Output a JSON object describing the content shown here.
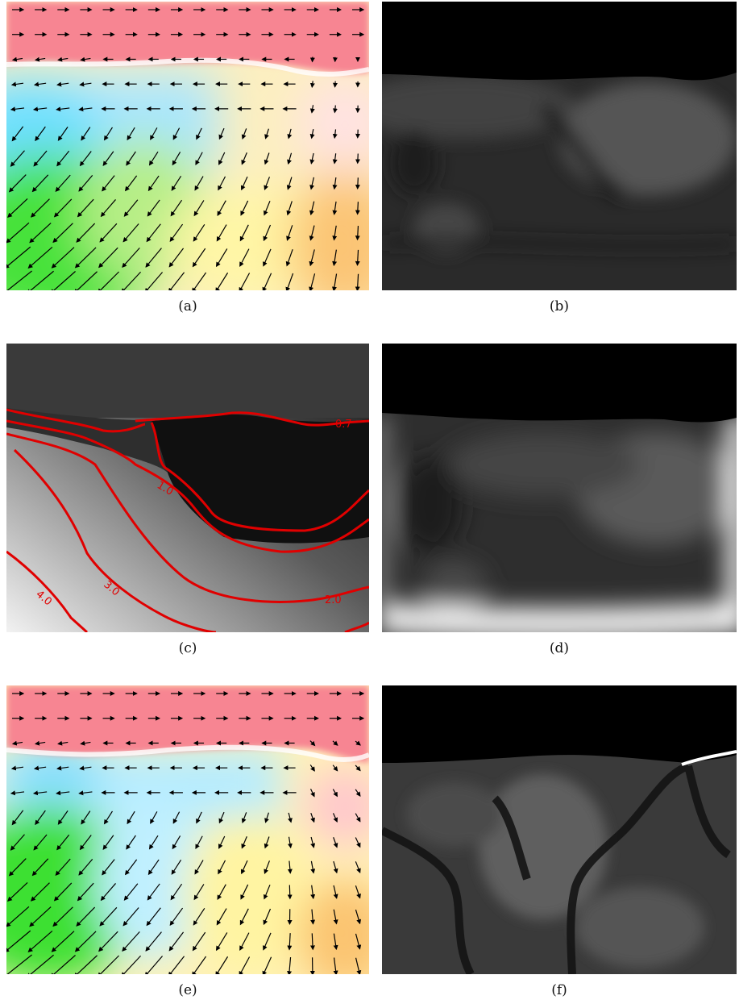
{
  "figure": {
    "panels": [
      {
        "id": "a",
        "caption": "(a)",
        "kind": "flow-vector-field"
      },
      {
        "id": "b",
        "caption": "(b)",
        "kind": "grayscale-error-map"
      },
      {
        "id": "c",
        "caption": "(c)",
        "kind": "grayscale-depth-with-contours",
        "contour_labels": [
          "0.7",
          "1.0",
          "2.0",
          "3.0",
          "4.0"
        ],
        "contour_color": "#e00000"
      },
      {
        "id": "d",
        "caption": "(d)",
        "kind": "grayscale-error-map-blurred"
      },
      {
        "id": "e",
        "caption": "(e)",
        "kind": "flow-vector-field"
      },
      {
        "id": "f",
        "caption": "(f)",
        "kind": "grayscale-error-map"
      }
    ],
    "flow_colors": {
      "red": "#f5808f",
      "cyan": "#8ee4ff",
      "green": "#4ee83a",
      "yellow": "#fff6a0",
      "orange": "#fcc877",
      "pink": "#ffd6dc"
    }
  }
}
